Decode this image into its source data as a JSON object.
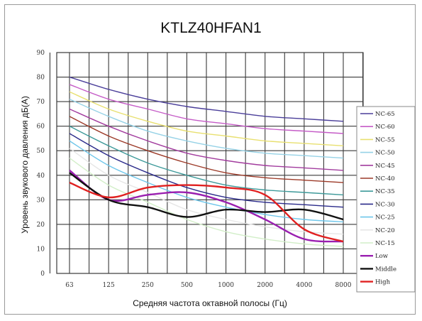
{
  "chart_data": {
    "type": "line",
    "title": "KTLZ40HFAN1",
    "xlabel": "Средняя частота октавной полосы (Гц)",
    "ylabel": "Уровень звукового давления дБ(А)",
    "categories": [
      "63",
      "125",
      "250",
      "500",
      "1000",
      "2000",
      "4000",
      "8000"
    ],
    "y_ticks": [
      "0",
      "10",
      "20",
      "30",
      "40",
      "50",
      "60",
      "70",
      "80",
      "90"
    ],
    "ylim": [
      0,
      90
    ],
    "grid": true,
    "legend_position": "right",
    "series": [
      {
        "name": "NC-65",
        "color": "#4b3f9a",
        "values": [
          80,
          75,
          71,
          68,
          66,
          64,
          63,
          62
        ]
      },
      {
        "name": "NC-60",
        "color": "#c55cc7",
        "values": [
          77,
          71,
          67,
          63,
          61,
          59,
          58,
          57
        ]
      },
      {
        "name": "NC-55",
        "color": "#e8e070",
        "values": [
          74,
          67,
          62,
          58,
          56,
          54,
          53,
          52
        ]
      },
      {
        "name": "NC-50",
        "color": "#96d2e6",
        "values": [
          71,
          64,
          58,
          54,
          51,
          49,
          48,
          47
        ]
      },
      {
        "name": "NC-45",
        "color": "#a23c9e",
        "values": [
          67,
          60,
          54,
          49,
          46,
          44,
          43,
          42
        ]
      },
      {
        "name": "NC-40",
        "color": "#9c3a28",
        "values": [
          64,
          56,
          50,
          45,
          41,
          39,
          38,
          37
        ]
      },
      {
        "name": "NC-35",
        "color": "#3e9a9a",
        "values": [
          60,
          52,
          45,
          40,
          36,
          34,
          33,
          32
        ]
      },
      {
        "name": "NC-30",
        "color": "#2a2a8a",
        "values": [
          57,
          48,
          41,
          35,
          31,
          29,
          28,
          27
        ]
      },
      {
        "name": "NC-25",
        "color": "#6ec6ea",
        "values": [
          54,
          44,
          37,
          31,
          27,
          24,
          22,
          21
        ]
      },
      {
        "name": "NC-20",
        "color": "#e6e6e6",
        "values": [
          51,
          40,
          33,
          26,
          22,
          19,
          17,
          16
        ]
      },
      {
        "name": "NC-15",
        "color": "#d2eec8",
        "values": [
          47,
          36,
          29,
          22,
          17,
          14,
          12,
          11
        ]
      },
      {
        "name": "Low",
        "color": "#9a1fb0",
        "values": [
          42,
          30,
          32,
          33,
          29,
          22,
          14,
          13
        ]
      },
      {
        "name": "Middle",
        "color": "#111111",
        "values": [
          41,
          30,
          27,
          23,
          26,
          25,
          26,
          22
        ]
      },
      {
        "name": "High",
        "color": "#e02020",
        "values": [
          37,
          31,
          35,
          36,
          35,
          32,
          18,
          13
        ]
      }
    ]
  }
}
